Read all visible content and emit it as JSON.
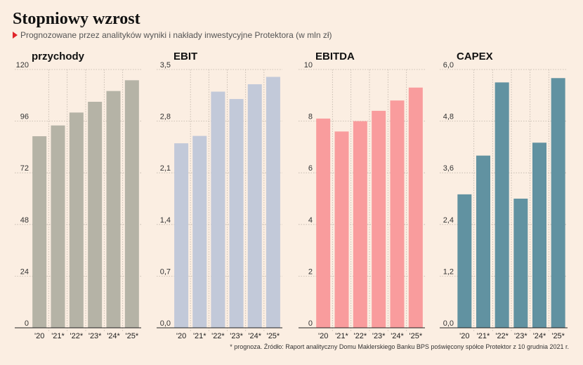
{
  "header": {
    "title": "Stopniowy wzrost",
    "subtitle": "Prognozowane przez analityków wyniki i nakłady inwestycyjne Protektora (w mln zł)"
  },
  "footnote": "* prognoza. Źródło: Raport analityczny Domu Maklerskiego Banku BPS poświęcony spółce Protektor z 10 grudnia 2021 r.",
  "chart_data": [
    {
      "type": "bar",
      "title": "przychody",
      "categories": [
        "'20",
        "'21*",
        "'22*",
        "'23*",
        "'24*",
        "'25*"
      ],
      "values": [
        89,
        94,
        100,
        105,
        110,
        115
      ],
      "yticks": [
        "0",
        "24",
        "48",
        "72",
        "96",
        "120"
      ],
      "ylim": [
        0,
        120
      ],
      "color": "#b5b3a6",
      "grid": true
    },
    {
      "type": "bar",
      "title": "EBIT",
      "categories": [
        "'20",
        "'21*",
        "'22*",
        "'23*",
        "'24*",
        "'25*"
      ],
      "values": [
        2.5,
        2.6,
        3.2,
        3.1,
        3.3,
        3.4
      ],
      "yticks": [
        "0,0",
        "0,7",
        "1,4",
        "2,1",
        "2,8",
        "3,5"
      ],
      "ylim": [
        0,
        3.5
      ],
      "color": "#c2c9d9",
      "grid": true
    },
    {
      "type": "bar",
      "title": "EBITDA",
      "categories": [
        "'20",
        "'21*",
        "'22*",
        "'23*",
        "'24*",
        "'25*"
      ],
      "values": [
        8.1,
        7.6,
        8.0,
        8.4,
        8.8,
        9.3
      ],
      "yticks": [
        "0",
        "2",
        "4",
        "6",
        "8",
        "10"
      ],
      "ylim": [
        0,
        10
      ],
      "color": "#f99c9d",
      "grid": true
    },
    {
      "type": "bar",
      "title": "CAPEX",
      "categories": [
        "'20",
        "'21*",
        "'22*",
        "'23*",
        "'24*",
        "'25*"
      ],
      "values": [
        3.1,
        4.0,
        5.7,
        3.0,
        4.3,
        5.8
      ],
      "yticks": [
        "0,0",
        "1,2",
        "2,4",
        "3,6",
        "4,8",
        "6,0"
      ],
      "ylim": [
        0,
        6
      ],
      "color": "#6192a1",
      "grid": true
    }
  ]
}
